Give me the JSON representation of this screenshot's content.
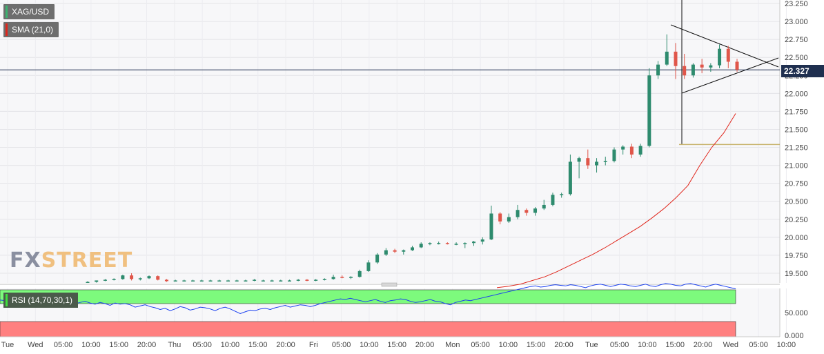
{
  "legend": {
    "symbol": "XAG/USD",
    "symbol_color": "#2e8b57",
    "sma_label": "SMA (21,0)",
    "sma_color": "#e0261c",
    "rsi_label": "RSI (14,70,30,1)"
  },
  "current_price": "22.327",
  "watermark": {
    "fx": "FX",
    "street": "STREET"
  },
  "colors": {
    "up": "#2e8b6e",
    "down": "#e0564a",
    "sma": "#e0261c",
    "rsi_line": "#1a3ff0",
    "rsi_overbought": "#7dfa7d",
    "rsi_oversold": "#ff8080",
    "support": "#c8b46e",
    "price_line": "#1f2f4f"
  },
  "chart_data": [
    {
      "type": "line",
      "title": "",
      "series_note": "candlestick",
      "ylim": [
        19.4,
        23.3
      ],
      "y_ticks": [
        "19.500",
        "19.750",
        "20.000",
        "20.250",
        "20.500",
        "20.750",
        "21.000",
        "21.250",
        "21.500",
        "21.750",
        "22.000",
        "22.250",
        "22.500",
        "22.750",
        "23.000",
        "23.250"
      ],
      "x_ticks": [
        "Tue",
        "Wed",
        "05:00",
        "10:00",
        "15:00",
        "20:00",
        "Thu",
        "05:00",
        "10:00",
        "15:00",
        "20:00",
        "Fri",
        "05:00",
        "10:00",
        "15:00",
        "20:00",
        "Mon",
        "05:00",
        "10:00",
        "15:00",
        "20:00",
        "Tue",
        "05:00",
        "10:00",
        "15:00",
        "20:00",
        "Wed",
        "05:00",
        "10:00"
      ],
      "candles": [
        [
          19.38,
          19.39,
          19.37,
          19.38
        ],
        [
          19.38,
          19.4,
          19.37,
          19.4
        ],
        [
          19.4,
          19.42,
          19.39,
          19.41
        ],
        [
          19.41,
          19.43,
          19.4,
          19.42
        ],
        [
          19.42,
          19.48,
          19.41,
          19.47
        ],
        [
          19.47,
          19.5,
          19.4,
          19.42
        ],
        [
          19.42,
          19.44,
          19.4,
          19.43
        ],
        [
          19.43,
          19.47,
          19.42,
          19.46
        ],
        [
          19.46,
          19.47,
          19.4,
          19.41
        ],
        [
          19.41,
          19.42,
          19.38,
          19.39
        ],
        [
          19.4,
          19.41,
          19.39,
          19.4
        ],
        [
          19.4,
          19.41,
          19.39,
          19.4
        ],
        [
          19.4,
          19.41,
          19.39,
          19.4
        ],
        [
          19.4,
          19.41,
          19.39,
          19.4
        ],
        [
          19.4,
          19.41,
          19.39,
          19.4
        ],
        [
          19.4,
          19.41,
          19.39,
          19.4
        ],
        [
          19.4,
          19.41,
          19.39,
          19.4
        ],
        [
          19.4,
          19.41,
          19.39,
          19.4
        ],
        [
          19.4,
          19.41,
          19.39,
          19.4
        ],
        [
          19.4,
          19.42,
          19.39,
          19.41
        ],
        [
          19.4,
          19.41,
          19.39,
          19.4
        ],
        [
          19.4,
          19.41,
          19.39,
          19.4
        ],
        [
          19.4,
          19.41,
          19.39,
          19.4
        ],
        [
          19.4,
          19.41,
          19.39,
          19.4
        ],
        [
          19.4,
          19.42,
          19.39,
          19.41
        ],
        [
          19.41,
          19.42,
          19.39,
          19.4
        ],
        [
          19.4,
          19.42,
          19.39,
          19.41
        ],
        [
          19.41,
          19.43,
          19.4,
          19.42
        ],
        [
          19.42,
          19.48,
          19.41,
          19.45
        ],
        [
          19.45,
          19.47,
          19.43,
          19.44
        ],
        [
          19.44,
          19.46,
          19.42,
          19.45
        ],
        [
          19.45,
          19.55,
          19.44,
          19.53
        ],
        [
          19.53,
          19.68,
          19.52,
          19.65
        ],
        [
          19.65,
          19.78,
          19.63,
          19.76
        ],
        [
          19.76,
          19.85,
          19.74,
          19.82
        ],
        [
          19.82,
          19.84,
          19.78,
          19.8
        ],
        [
          19.8,
          19.83,
          19.76,
          19.82
        ],
        [
          19.82,
          19.88,
          19.81,
          19.86
        ],
        [
          19.86,
          19.93,
          19.85,
          19.91
        ],
        [
          19.91,
          19.93,
          19.89,
          19.92
        ],
        [
          19.92,
          19.94,
          19.9,
          19.92
        ],
        [
          19.92,
          19.93,
          19.9,
          19.91
        ],
        [
          19.91,
          19.93,
          19.89,
          19.91
        ],
        [
          19.91,
          19.93,
          19.85,
          19.92
        ],
        [
          19.92,
          19.95,
          19.88,
          19.94
        ],
        [
          19.94,
          20.0,
          19.9,
          19.97
        ],
        [
          19.97,
          20.44,
          19.96,
          20.33
        ],
        [
          20.33,
          20.35,
          20.18,
          20.22
        ],
        [
          20.22,
          20.33,
          20.2,
          20.28
        ],
        [
          20.28,
          20.45,
          20.25,
          20.38
        ],
        [
          20.38,
          20.4,
          20.3,
          20.34
        ],
        [
          20.34,
          20.42,
          20.3,
          20.4
        ],
        [
          20.4,
          20.52,
          20.38,
          20.45
        ],
        [
          20.45,
          20.62,
          20.43,
          20.59
        ],
        [
          20.59,
          20.62,
          20.55,
          20.6
        ],
        [
          20.6,
          21.15,
          20.58,
          21.05
        ],
        [
          21.05,
          21.12,
          20.82,
          21.1
        ],
        [
          21.1,
          21.22,
          20.95,
          21.0
        ],
        [
          21.0,
          21.1,
          20.9,
          21.05
        ],
        [
          21.05,
          21.12,
          21.0,
          21.06
        ],
        [
          21.06,
          21.25,
          21.04,
          21.22
        ],
        [
          21.22,
          21.28,
          21.15,
          21.26
        ],
        [
          21.26,
          21.3,
          21.1,
          21.15
        ],
        [
          21.15,
          21.3,
          21.12,
          21.27
        ],
        [
          21.27,
          22.35,
          21.25,
          22.25
        ],
        [
          22.25,
          22.45,
          22.2,
          22.4
        ],
        [
          22.4,
          22.82,
          22.38,
          22.58
        ],
        [
          22.58,
          22.7,
          22.2,
          22.38
        ],
        [
          22.38,
          22.55,
          22.2,
          22.25
        ],
        [
          22.25,
          22.42,
          22.22,
          22.4
        ],
        [
          22.4,
          22.48,
          22.28,
          22.36
        ],
        [
          22.36,
          22.42,
          22.3,
          22.39
        ],
        [
          22.39,
          22.68,
          22.35,
          22.62
        ],
        [
          22.62,
          22.66,
          22.35,
          22.44
        ],
        [
          22.44,
          22.48,
          22.3,
          22.33
        ]
      ],
      "sma": [
        19.3,
        19.32,
        19.35,
        19.4,
        19.45,
        19.52,
        19.6,
        19.68,
        19.76,
        19.85,
        19.95,
        20.05,
        20.15,
        20.27,
        20.4,
        20.55,
        20.72,
        21.0,
        21.25,
        21.45,
        21.72
      ],
      "support_level": 21.29,
      "current_price": 22.327
    },
    {
      "type": "line",
      "title": "",
      "ylim": [
        0,
        100
      ],
      "y_ticks": [
        "50.000",
        "0.000"
      ],
      "overbought": 70,
      "oversold": 30,
      "rsi": [
        61,
        60,
        58,
        59,
        57,
        60,
        58,
        56,
        59,
        57,
        58,
        55,
        57,
        56,
        58,
        55,
        57,
        59,
        56,
        54,
        57,
        55,
        52,
        56,
        54,
        55,
        53,
        49,
        51,
        53,
        50,
        48,
        45,
        47,
        43,
        46,
        50,
        48,
        44,
        46,
        49,
        48,
        46,
        43,
        47,
        49,
        46,
        42,
        38,
        41,
        44,
        43,
        46,
        47,
        45,
        48,
        50,
        52,
        49,
        51,
        53,
        52,
        50,
        52,
        55,
        57,
        59,
        61,
        63,
        62,
        64,
        62,
        60,
        58,
        60,
        62,
        59,
        57,
        60,
        61,
        63,
        62,
        59,
        57,
        58,
        60,
        62,
        59,
        58,
        55,
        53,
        57,
        59,
        61,
        60,
        62,
        64,
        66,
        68,
        70,
        72,
        74,
        76,
        78,
        80,
        82,
        84,
        85,
        83,
        84,
        86,
        87,
        86,
        85,
        87,
        86,
        84,
        82,
        85,
        87,
        88,
        86,
        84,
        86,
        88,
        87,
        85,
        84,
        86,
        88,
        85,
        84,
        87,
        89,
        88,
        86,
        85,
        88,
        89,
        87,
        85,
        83,
        86,
        88,
        86,
        84,
        82,
        80
      ]
    }
  ]
}
